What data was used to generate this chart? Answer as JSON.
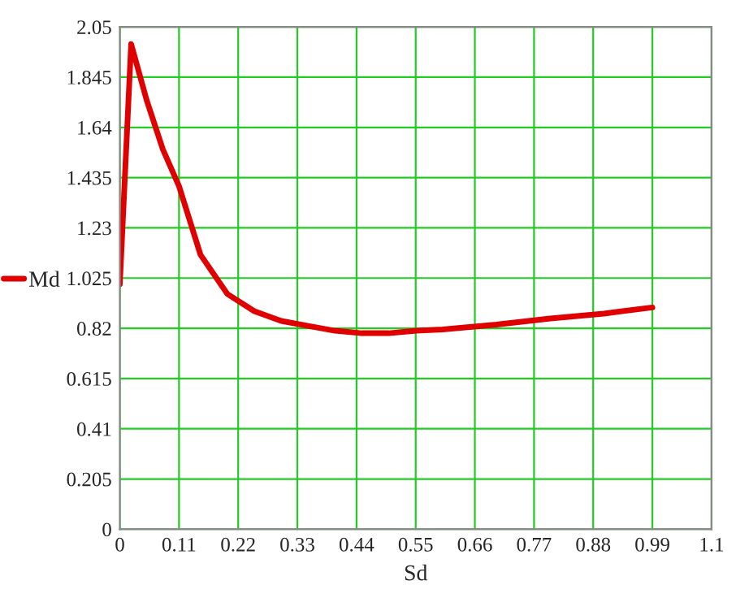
{
  "chart_data": {
    "type": "line",
    "xlabel": "Sd",
    "legend": "left",
    "grid": true,
    "line_style": "solid",
    "marker": "none",
    "xlim": [
      0,
      1.1
    ],
    "ylim": [
      0,
      2.05
    ],
    "xticks": [
      0,
      0.11,
      0.22,
      0.33,
      0.44,
      0.55,
      0.66,
      0.77,
      0.88,
      0.99,
      1.1
    ],
    "yticks": [
      0,
      0.205,
      0.41,
      0.615,
      0.82,
      1.025,
      1.23,
      1.435,
      1.64,
      1.845,
      2.05
    ],
    "series": [
      {
        "name": "Md",
        "color": "#e00000",
        "x": [
          0,
          0.021,
          0.05,
          0.08,
          0.11,
          0.15,
          0.2,
          0.25,
          0.3,
          0.35,
          0.4,
          0.45,
          0.5,
          0.55,
          0.6,
          0.7,
          0.8,
          0.9,
          0.99
        ],
        "values": [
          1.0,
          1.98,
          1.75,
          1.55,
          1.4,
          1.12,
          0.96,
          0.89,
          0.85,
          0.83,
          0.81,
          0.8,
          0.8,
          0.81,
          0.815,
          0.835,
          0.86,
          0.88,
          0.905
        ]
      }
    ]
  }
}
